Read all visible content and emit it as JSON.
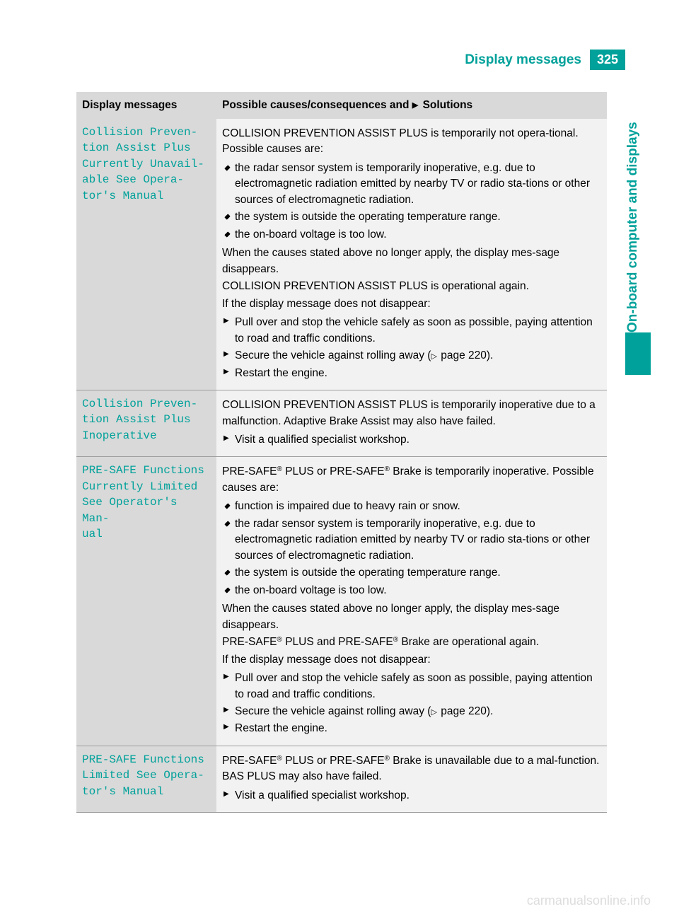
{
  "header": {
    "title": "Display messages",
    "page_number": "325"
  },
  "side_tab": {
    "label": "On-board computer and displays"
  },
  "table": {
    "columns": [
      "Display messages",
      "Possible causes/consequences and ▶ Solutions"
    ],
    "col1_header": "Display messages",
    "col2_header_prefix": "Possible causes/consequences and ",
    "col2_header_suffix": " Solutions",
    "rows": [
      {
        "message": "Collision Preven‐\ntion Assist Plus\nCurrently Unavail‐\nable See Opera‐\ntor's Manual",
        "intro": "COLLISION PREVENTION ASSIST PLUS is temporarily not opera‐tional. Possible causes are:",
        "bullets": [
          "the radar sensor system is temporarily inoperative, e.g. due to electromagnetic radiation emitted by nearby TV or radio sta‐tions or other sources of electromagnetic radiation.",
          "the system is outside the operating temperature range.",
          "the on-board voltage is too low."
        ],
        "mid1": "When the causes stated above no longer apply, the display mes‐sage disappears.",
        "mid2": "COLLISION PREVENTION ASSIST PLUS is operational again.",
        "mid3": "If the display message does not disappear:",
        "actions": [
          "Pull over and stop the vehicle safely as soon as possible, paying attention to road and traffic conditions.",
          "Secure the vehicle against rolling away (▷ page 220).",
          "Restart the engine."
        ]
      },
      {
        "message": "Collision Preven‐\ntion Assist Plus\nInoperative",
        "intro": "COLLISION PREVENTION ASSIST PLUS is temporarily inoperative due to a malfunction. Adaptive Brake Assist may also have failed.",
        "actions": [
          "Visit a qualified specialist workshop."
        ]
      },
      {
        "message": "PRE-SAFE Functions\nCurrently Limited\nSee Operator's Man‐\nual",
        "intro_html": "PRE-SAFE® PLUS or PRE-SAFE® Brake is temporarily inoperative. Possible causes are:",
        "bullets": [
          "function is impaired due to heavy rain or snow.",
          "the radar sensor system is temporarily inoperative, e.g. due to electromagnetic radiation emitted by nearby TV or radio sta‐tions or other sources of electromagnetic radiation.",
          "the system is outside the operating temperature range.",
          "the on-board voltage is too low."
        ],
        "mid1": "When the causes stated above no longer apply, the display mes‐sage disappears.",
        "mid2_html": "PRE-SAFE® PLUS and PRE-SAFE® Brake are operational again.",
        "mid3": "If the display message does not disappear:",
        "actions": [
          "Pull over and stop the vehicle safely as soon as possible, paying attention to road and traffic conditions.",
          "Secure the vehicle against rolling away (▷ page 220).",
          "Restart the engine."
        ]
      },
      {
        "message": "PRE-SAFE Functions\nLimited See Opera‐\ntor's Manual",
        "intro_html": "PRE-SAFE® PLUS or PRE-SAFE® Brake is unavailable due to a mal‐function. BAS PLUS may also have failed.",
        "actions": [
          "Visit a qualified specialist workshop."
        ]
      }
    ]
  },
  "watermark": "carmanualsonline.info",
  "colors": {
    "accent": "#00a19a",
    "header_bg": "#d9d9d9",
    "body_bg": "#f2f2f2",
    "text": "#000000",
    "watermark": "#dddddd"
  },
  "page_ref": "220"
}
